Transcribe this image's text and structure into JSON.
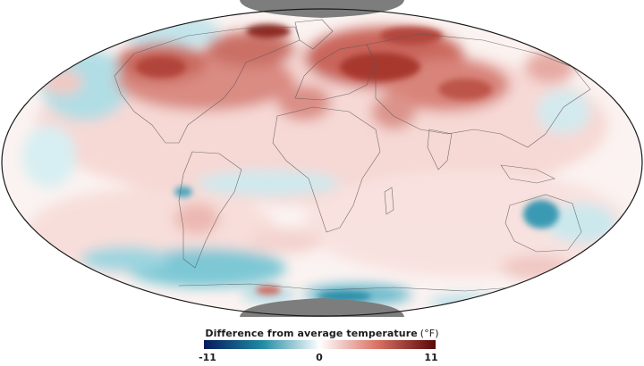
{
  "map": {
    "projection": "hammer",
    "no_data_color": "#7d7d7d",
    "land_outline_color": "#555555"
  },
  "legend": {
    "title": "Difference from average temperature",
    "unit": "(°F)",
    "ticks": [
      "-11",
      "0",
      "11"
    ],
    "colors": {
      "min": "#08195e",
      "cold": "#1f8aa3",
      "zero": "#ffffff",
      "warm": "#d97064",
      "max": "#5a0707"
    }
  }
}
